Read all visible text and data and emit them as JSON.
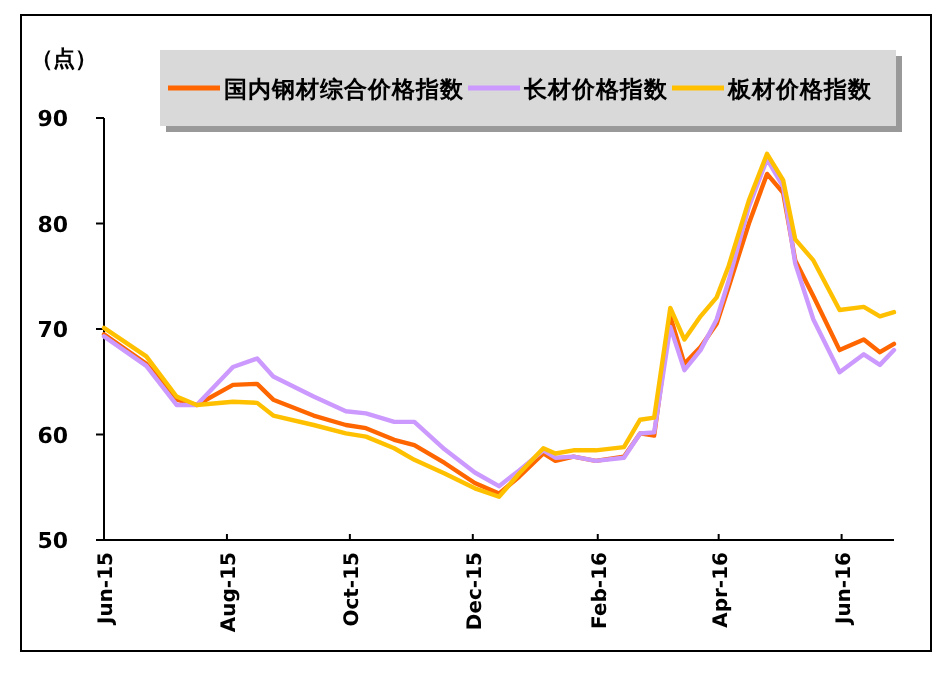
{
  "chart_data": {
    "type": "line",
    "ylabel": "（点）",
    "legend": "top",
    "marker": "none",
    "line_style": "solid",
    "grid": false,
    "x": [
      "2015-06-01",
      "2015-06-22",
      "2015-07-07",
      "2015-07-17",
      "2015-08-04",
      "2015-08-16",
      "2015-08-24",
      "2015-09-13",
      "2015-09-29",
      "2015-10-09",
      "2015-10-23",
      "2015-11-02",
      "2015-11-17",
      "2015-12-02",
      "2015-12-14",
      "2015-12-24",
      "2016-01-05",
      "2016-01-11",
      "2016-01-20",
      "2016-01-31",
      "2016-02-14",
      "2016-02-22",
      "2016-02-29",
      "2016-03-08",
      "2016-03-15",
      "2016-03-23",
      "2016-03-31",
      "2016-04-06",
      "2016-04-16",
      "2016-04-25",
      "2016-05-03",
      "2016-05-09",
      "2016-05-18",
      "2016-05-31",
      "2016-06-12",
      "2016-06-20",
      "2016-06-27"
    ],
    "series": [
      {
        "name": "国内钢材综合价格指数",
        "color": "#ff6600",
        "values": [
          69.5,
          66.7,
          63.3,
          62.8,
          64.7,
          64.8,
          63.3,
          61.8,
          60.9,
          60.6,
          59.5,
          59.0,
          57.3,
          55.4,
          54.4,
          56.0,
          58.2,
          57.5,
          57.9,
          57.5,
          57.9,
          60.1,
          59.9,
          71.2,
          66.7,
          68.3,
          70.5,
          74.0,
          80.0,
          84.7,
          82.9,
          76.5,
          73.1,
          68.0,
          69.0,
          67.8,
          68.6
        ]
      },
      {
        "name": "长材价格指数",
        "color": "#cc99ff",
        "values": [
          69.3,
          66.5,
          62.8,
          62.8,
          66.4,
          67.2,
          65.5,
          63.6,
          62.2,
          62.0,
          61.2,
          61.2,
          58.6,
          56.4,
          55.1,
          56.6,
          58.5,
          57.8,
          57.9,
          57.5,
          57.8,
          60.1,
          60.2,
          70.2,
          66.1,
          68.0,
          70.9,
          74.6,
          81.6,
          86.1,
          83.5,
          76.2,
          70.9,
          65.9,
          67.6,
          66.6,
          68.0
        ]
      },
      {
        "name": "板材价格指数",
        "color": "#ffc000",
        "values": [
          70.1,
          67.4,
          63.6,
          62.8,
          63.1,
          63.0,
          61.8,
          60.9,
          60.1,
          59.8,
          58.7,
          57.6,
          56.3,
          54.9,
          54.1,
          56.3,
          58.7,
          58.2,
          58.5,
          58.5,
          58.8,
          61.4,
          61.6,
          72.0,
          69.0,
          71.2,
          73.0,
          76.0,
          82.2,
          86.6,
          84.1,
          78.5,
          76.5,
          71.8,
          72.1,
          71.2,
          71.6
        ]
      }
    ],
    "xlim": [
      "2015-06-01",
      "2016-06-27"
    ],
    "xticks": [
      {
        "value": "2015-06-01",
        "label": "Jun-15"
      },
      {
        "value": "2015-08-01",
        "label": "Aug-15"
      },
      {
        "value": "2015-10-01",
        "label": "Oct-15"
      },
      {
        "value": "2015-12-01",
        "label": "Dec-15"
      },
      {
        "value": "2016-02-01",
        "label": "Feb-16"
      },
      {
        "value": "2016-04-01",
        "label": "Apr-16"
      },
      {
        "value": "2016-06-01",
        "label": "Jun-16"
      }
    ],
    "ylim": [
      50,
      90
    ],
    "yticks": [
      50,
      60,
      70,
      80,
      90
    ]
  }
}
